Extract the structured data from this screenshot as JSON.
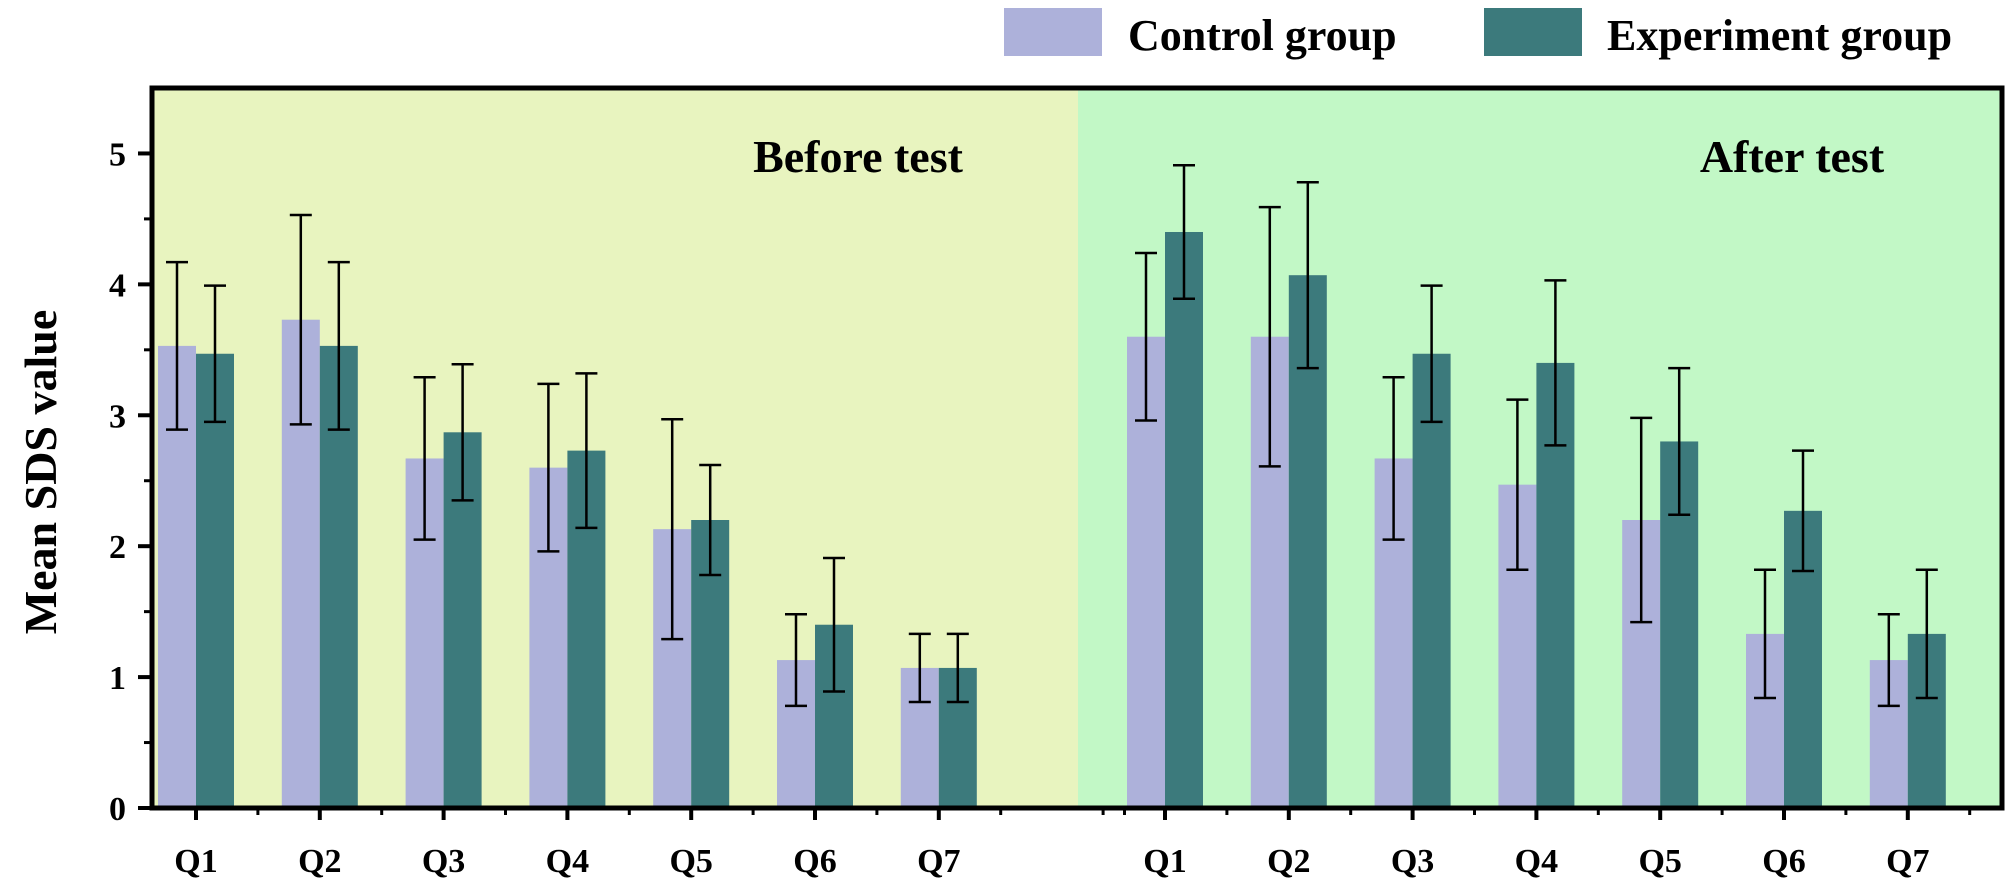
{
  "chart_data": {
    "type": "bar",
    "ylabel": "Mean SDS value",
    "xlabel": "",
    "ylim": [
      0,
      5.5
    ],
    "yticks": [
      "0",
      "1",
      "2",
      "3",
      "4",
      "5"
    ],
    "categories": [
      "Q1",
      "Q2",
      "Q3",
      "Q4",
      "Q5",
      "Q6",
      "Q7"
    ],
    "colors": {
      "control": "#adb1da",
      "experiment": "#3c7a7c",
      "panel_before": "#e8f4bf",
      "panel_after": "#c2f8c6",
      "frame": "#000000"
    },
    "legend": {
      "position": "top-right",
      "items": [
        {
          "name": "Control group",
          "color_key": "control"
        },
        {
          "name": "Experiment group",
          "color_key": "experiment"
        }
      ]
    },
    "panels": [
      {
        "title": "Before test",
        "series": [
          {
            "name": "Control group",
            "values": [
              3.53,
              3.73,
              2.67,
              2.6,
              2.13,
              1.13,
              1.07
            ],
            "err_low": [
              2.89,
              2.93,
              2.05,
              1.96,
              1.29,
              0.78,
              0.81
            ],
            "err_high": [
              4.17,
              4.53,
              3.29,
              3.24,
              2.97,
              1.48,
              1.33
            ]
          },
          {
            "name": "Experiment group",
            "values": [
              3.47,
              3.53,
              2.87,
              2.73,
              2.2,
              1.4,
              1.07
            ],
            "err_low": [
              2.95,
              2.89,
              2.35,
              2.14,
              1.78,
              0.89,
              0.81
            ],
            "err_high": [
              3.99,
              4.17,
              3.39,
              3.32,
              2.62,
              1.91,
              1.33
            ]
          }
        ]
      },
      {
        "title": "After test",
        "series": [
          {
            "name": "Control group",
            "values": [
              3.6,
              3.6,
              2.67,
              2.47,
              2.2,
              1.33,
              1.13
            ],
            "err_low": [
              2.96,
              2.61,
              2.05,
              1.82,
              1.42,
              0.84,
              0.78
            ],
            "err_high": [
              4.24,
              4.59,
              3.29,
              3.12,
              2.98,
              1.82,
              1.48
            ]
          },
          {
            "name": "Experiment group",
            "values": [
              4.4,
              4.07,
              3.47,
              3.4,
              2.8,
              2.27,
              1.33
            ],
            "err_low": [
              3.89,
              3.36,
              2.95,
              2.77,
              2.24,
              1.81,
              0.84
            ],
            "err_high": [
              4.91,
              4.78,
              3.99,
              4.03,
              3.36,
              2.73,
              1.82
            ]
          }
        ]
      }
    ]
  }
}
